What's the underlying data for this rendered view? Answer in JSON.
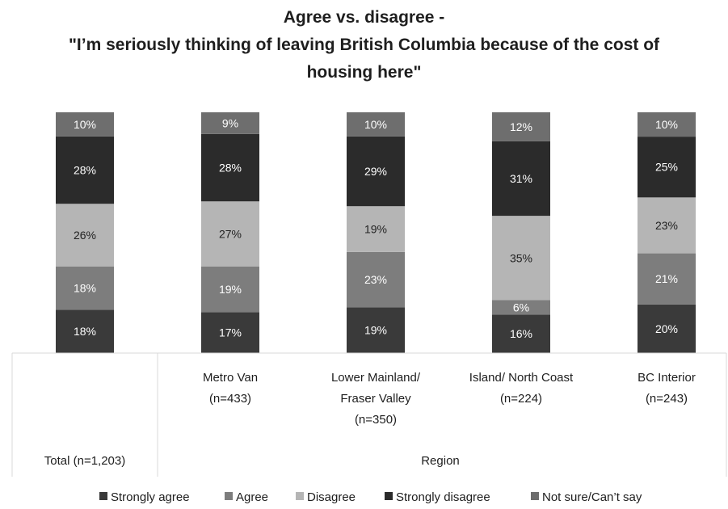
{
  "chart_data": {
    "type": "bar",
    "stacked": true,
    "title_lines": [
      "Agree vs. disagree -",
      "\"I’m seriously thinking of leaving British Columbia because of the cost of",
      "housing here\""
    ],
    "categories": [
      {
        "label_lines": [
          "Total (n=1,203)"
        ]
      },
      {
        "label_lines": [
          "Metro Van",
          "(n=433)"
        ]
      },
      {
        "label_lines": [
          "Lower Mainland/",
          "Fraser Valley",
          "(n=350)"
        ]
      },
      {
        "label_lines": [
          "Island/ North Coast",
          "(n=224)"
        ]
      },
      {
        "label_lines": [
          "BC Interior",
          "(n=243)"
        ]
      }
    ],
    "group_label": "Region",
    "series": [
      {
        "name": "Strongly agree",
        "color": "#3a3a3a",
        "values": [
          18,
          17,
          19,
          16,
          20
        ]
      },
      {
        "name": "Agree",
        "color": "#7d7d7d",
        "values": [
          18,
          19,
          23,
          6,
          21
        ]
      },
      {
        "name": "Disagree",
        "color": "#b5b5b5",
        "values": [
          26,
          27,
          19,
          35,
          23
        ]
      },
      {
        "name": "Strongly disagree",
        "color": "#2b2b2b",
        "values": [
          28,
          28,
          29,
          31,
          25
        ]
      },
      {
        "name": "Not sure/Can’t say",
        "color": "#6e6e6e",
        "values": [
          10,
          9,
          10,
          12,
          10
        ]
      }
    ],
    "data_label_suffix": "%",
    "legend_position": "bottom",
    "grid": false
  }
}
